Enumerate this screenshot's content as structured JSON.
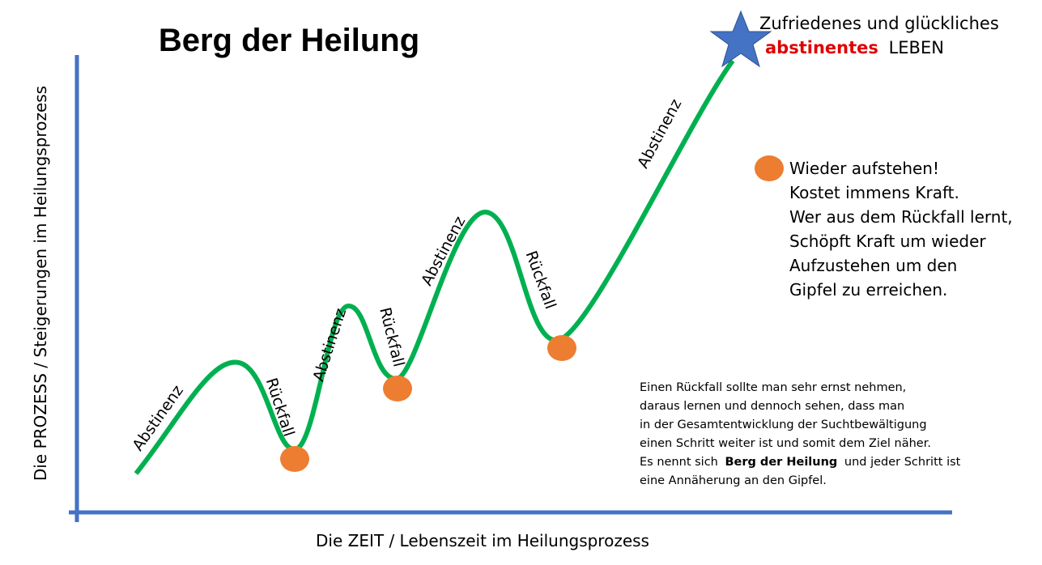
{
  "title": "Berg der Heilung",
  "y_axis_label": "Die PROZESS /  Steigerungen im Heilungsprozess",
  "x_axis_label": "Die ZEIT / Lebenszeit im Heilungsprozess",
  "goal": {
    "line1": "Zufriedenes und glückliches",
    "highlight": "abstinentes",
    "rest": "LEBEN"
  },
  "curve_labels": [
    "Abstinenz",
    "Rückfall",
    "Abstinenz",
    "Rückfall",
    "Abstinenz",
    "Rückfall",
    "Abstinenz"
  ],
  "legend_lines": [
    "Wieder aufstehen!",
    "Kostet immens Kraft.",
    "Wer aus dem Rückfall lernt,",
    "Schöpft Kraft um wieder",
    "Aufzustehen um den",
    "Gipfel zu erreichen."
  ],
  "note": {
    "lines": [
      "Einen Rückfall sollte man sehr ernst nehmen,",
      "daraus lernen und dennoch sehen, dass man",
      "in der Gesamtentwicklung der Suchtbewältigung",
      "einen Schritt weiter ist und somit dem Ziel näher."
    ],
    "emphasis": {
      "before": "Es nennt sich",
      "bold": "Berg der Heilung",
      "after": "und jeder Schritt ist"
    },
    "last_line": "eine Annäherung an den Gipfel."
  }
}
